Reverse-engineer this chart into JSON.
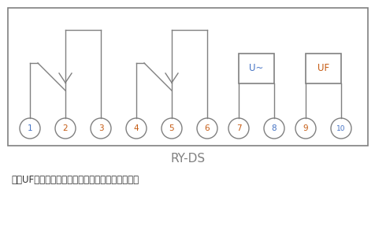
{
  "title": "RY-DS",
  "note": "注：UF为继电器辅助电源，使用时必需长期带电。",
  "border_color": "#808080",
  "line_color": "#808080",
  "circle_color": "#808080",
  "number_color_blue": "#4472c4",
  "number_color_orange": "#c55a11",
  "box_color": "#808080",
  "title_color": "#808080",
  "note_color": "#303030",
  "u_tilde_color": "#4472c4",
  "uf_color": "#c55a11",
  "background": "#ffffff",
  "terminals": [
    1,
    2,
    3,
    4,
    5,
    6,
    7,
    8,
    9,
    10
  ],
  "fig_w": 4.77,
  "fig_h": 2.87,
  "dpi": 100
}
